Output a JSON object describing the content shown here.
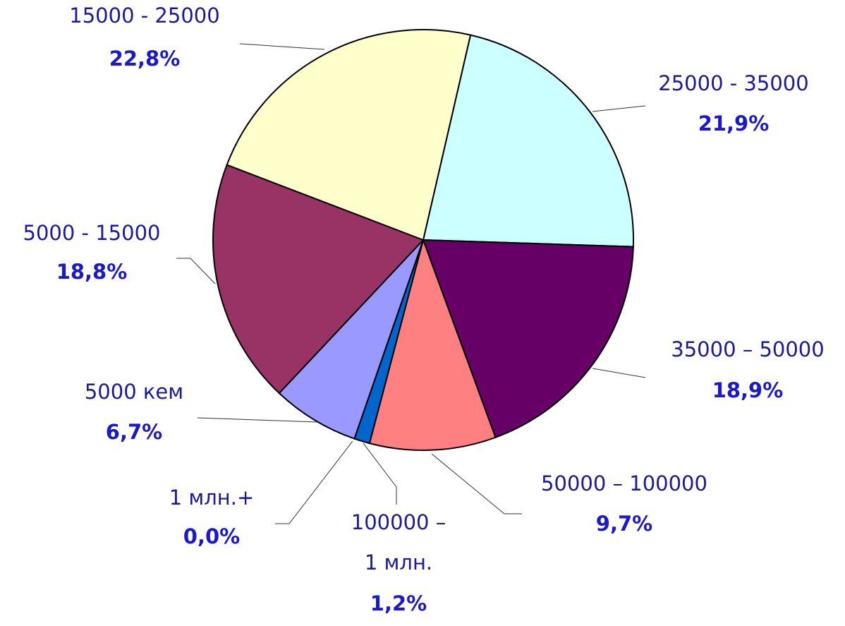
{
  "chart_data": {
    "type": "pie",
    "categories": [
      "25000 - 35000",
      "35000 – 50000",
      "50000 – 100000",
      "100000 –\n1 млн.",
      "1 млн.+",
      "5000 кем",
      "5000 - 15000",
      "15000 - 25000"
    ],
    "values": [
      21.9,
      18.9,
      9.7,
      1.2,
      0.0,
      6.7,
      18.8,
      22.8
    ],
    "value_labels": [
      "21,9%",
      "18,9%",
      "9,7%",
      "1,2%",
      "0,0%",
      "6,7%",
      "18,8%",
      "22,8%"
    ],
    "colors": [
      "#ccffff",
      "#660066",
      "#ff8080",
      "#0066cc",
      "#333399",
      "#9999ff",
      "#993366",
      "#ffffcc"
    ]
  }
}
